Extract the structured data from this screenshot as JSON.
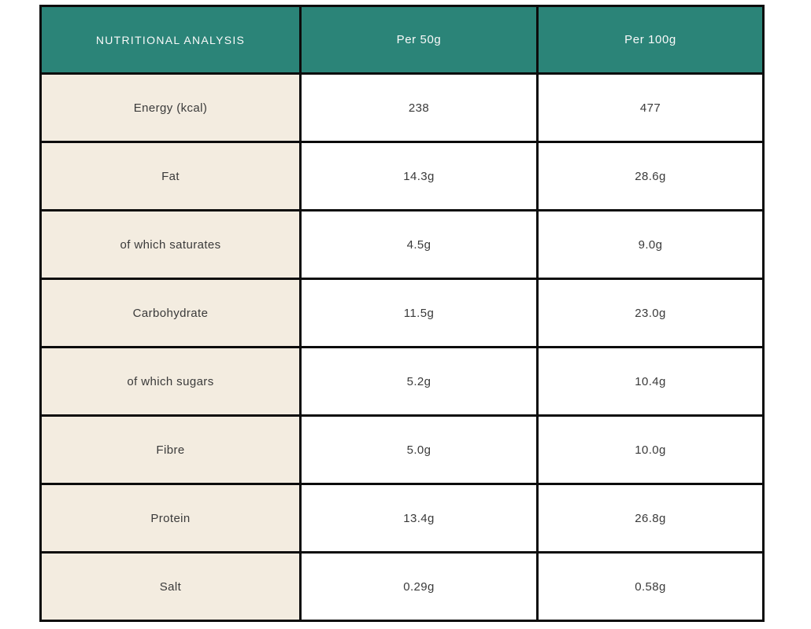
{
  "colors": {
    "header_bg": "#2b8478",
    "label_bg": "#f3ece0",
    "border": "#0c0c0c",
    "header_text": "#fafafa",
    "body_text": "#3a3a3a",
    "value_bg": "#ffffff",
    "page_bg": "#ffffff"
  },
  "table": {
    "header": {
      "title": "NUTRITIONAL ANALYSIS",
      "per50": "Per 50g",
      "per100": "Per 100g"
    },
    "rows": [
      {
        "label": "Energy (kcal)",
        "per50": "238",
        "per100": "477"
      },
      {
        "label": "Fat",
        "per50": "14.3g",
        "per100": "28.6g"
      },
      {
        "label": "of which saturates",
        "per50": "4.5g",
        "per100": "9.0g"
      },
      {
        "label": "Carbohydrate",
        "per50": "11.5g",
        "per100": "23.0g"
      },
      {
        "label": "of which sugars",
        "per50": "5.2g",
        "per100": "10.4g"
      },
      {
        "label": "Fibre",
        "per50": "5.0g",
        "per100": "10.0g"
      },
      {
        "label": "Protein",
        "per50": "13.4g",
        "per100": "26.8g"
      },
      {
        "label": "Salt",
        "per50": "0.29g",
        "per100": "0.58g"
      }
    ]
  }
}
